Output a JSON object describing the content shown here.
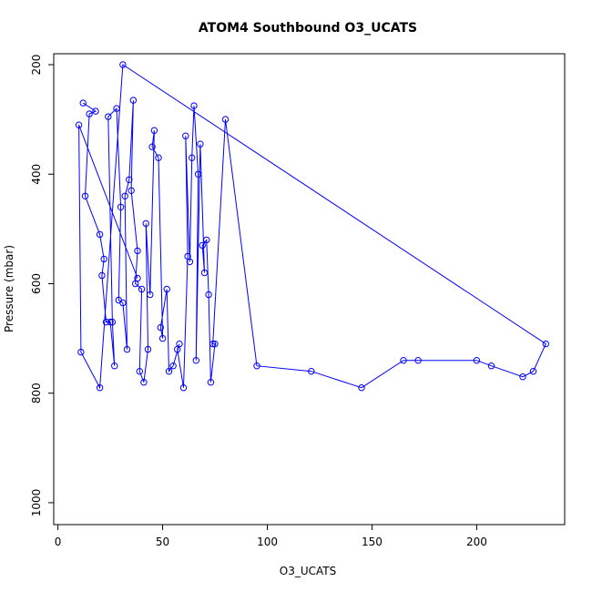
{
  "chart_data": {
    "type": "line",
    "title": "ATOM4 Southbound O3_UCATS",
    "xlabel": "O3_UCATS",
    "ylabel": "Pressure (mbar)",
    "xlim": [
      -2,
      242
    ],
    "ylim": [
      1040,
      180
    ],
    "y_inverted": true,
    "grid": false,
    "x_ticks": [
      0,
      50,
      100,
      150,
      200
    ],
    "y_ticks": [
      200,
      400,
      600,
      800,
      1000
    ],
    "line_color": "#0000ff",
    "marker": "open-circle",
    "series": [
      {
        "x": [
          12,
          18,
          15,
          13,
          20,
          22,
          21,
          23,
          25,
          27,
          26,
          24,
          28,
          30,
          29,
          31,
          33,
          32,
          34,
          36,
          35,
          38,
          37,
          40,
          39,
          41,
          43,
          42,
          44,
          46,
          45,
          48,
          50,
          49,
          52,
          53,
          55,
          58,
          57,
          60,
          62,
          61,
          63,
          64,
          65,
          67,
          66,
          68,
          70,
          69,
          71,
          72,
          73,
          75,
          74,
          80,
          95,
          121,
          145,
          165,
          172,
          200,
          207,
          222,
          227,
          233,
          31,
          20,
          11,
          10,
          38
        ],
        "y": [
          270,
          285,
          290,
          440,
          510,
          555,
          585,
          670,
          670,
          750,
          670,
          295,
          280,
          460,
          630,
          635,
          720,
          440,
          410,
          265,
          430,
          540,
          600,
          610,
          760,
          780,
          720,
          490,
          620,
          320,
          350,
          370,
          700,
          680,
          610,
          760,
          750,
          710,
          720,
          790,
          550,
          330,
          560,
          370,
          275,
          400,
          740,
          345,
          580,
          530,
          520,
          620,
          780,
          710,
          710,
          300,
          750,
          760,
          790,
          740,
          740,
          740,
          750,
          770,
          760,
          710,
          200,
          790,
          725,
          310,
          590
        ]
      }
    ]
  }
}
